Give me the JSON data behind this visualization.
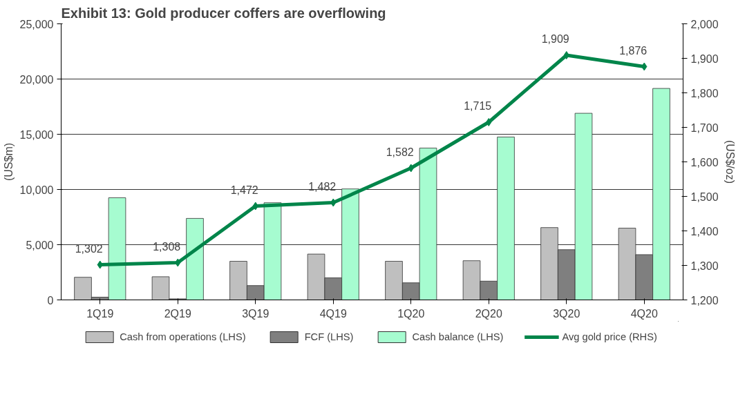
{
  "chart_data": {
    "type": "bar",
    "title": "Exhibit 13: Gold producer coffers are overflowing",
    "ylabel": "(US$m)",
    "y2label": "(US$/oz)",
    "categories": [
      "1Q19",
      "2Q19",
      "3Q19",
      "4Q19",
      "1Q20",
      "2Q20",
      "3Q20",
      "4Q20"
    ],
    "series": [
      {
        "name": "Cash from operations (LHS)",
        "color": "#bfbfbf",
        "values": [
          2050,
          2100,
          3500,
          4150,
          3500,
          3550,
          6550,
          6500
        ]
      },
      {
        "name": "FCF (LHS)",
        "color": "#7f7f7f",
        "values": [
          250,
          100,
          1300,
          2000,
          1550,
          1700,
          4550,
          4100
        ]
      },
      {
        "name": "Cash balance (LHS)",
        "color": "#a6fcd0",
        "values": [
          9250,
          7380,
          8800,
          10050,
          13750,
          14750,
          16900,
          19150
        ]
      },
      {
        "name": "Avg gold price (RHS)",
        "type": "line",
        "axis": "y2",
        "color": "#00854a",
        "marker": "diamond",
        "values": [
          1302,
          1308,
          1472,
          1482,
          1582,
          1715,
          1909,
          1876
        ],
        "value_labels": [
          "1,302",
          "1,308",
          "1,472",
          "1,482",
          "1,582",
          "1,715",
          "1,909",
          "1,876"
        ]
      }
    ],
    "ylim": [
      0,
      25000
    ],
    "yticks": [
      {
        "value": 0,
        "label": "0"
      },
      {
        "value": 5000,
        "label": "5,000"
      },
      {
        "value": 10000,
        "label": "10,000"
      },
      {
        "value": 15000,
        "label": "15,000"
      },
      {
        "value": 20000,
        "label": "20,000"
      },
      {
        "value": 25000,
        "label": "25,000"
      }
    ],
    "y2lim": [
      1200,
      2000
    ],
    "y2ticks": [
      {
        "value": 1200,
        "label": "1,200"
      },
      {
        "value": 1300,
        "label": "1,300"
      },
      {
        "value": 1400,
        "label": "1,400"
      },
      {
        "value": 1500,
        "label": "1,500"
      },
      {
        "value": 1600,
        "label": "1,600"
      },
      {
        "value": 1700,
        "label": "1,700"
      },
      {
        "value": 1800,
        "label": "1,800"
      },
      {
        "value": 1900,
        "label": "1,900"
      },
      {
        "value": 2000,
        "label": "2,000"
      }
    ],
    "grid": "y",
    "legend": "bottom"
  }
}
